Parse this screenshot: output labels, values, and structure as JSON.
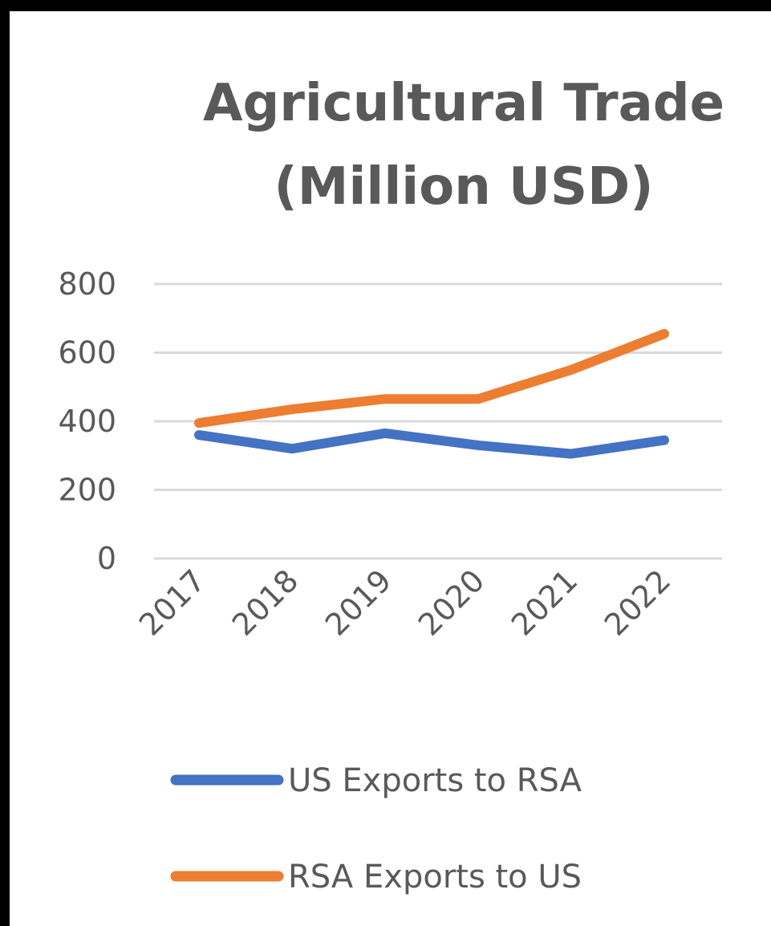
{
  "chart_data": {
    "type": "line",
    "title_lines": [
      "Agricultural Trade",
      "(Million USD)"
    ],
    "categories": [
      "2017",
      "2018",
      "2019",
      "2020",
      "2021",
      "2022"
    ],
    "yticks": [
      "0",
      "200",
      "400",
      "600",
      "800"
    ],
    "ylim": [
      0,
      800
    ],
    "grid": true,
    "legend_position": "bottom",
    "series": [
      {
        "name": "US Exports to RSA",
        "color": "#4472c4",
        "values": [
          360,
          320,
          365,
          330,
          305,
          345
        ]
      },
      {
        "name": "RSA Exports to US",
        "color": "#ed7d31",
        "values": [
          395,
          435,
          465,
          465,
          550,
          655
        ]
      }
    ]
  }
}
